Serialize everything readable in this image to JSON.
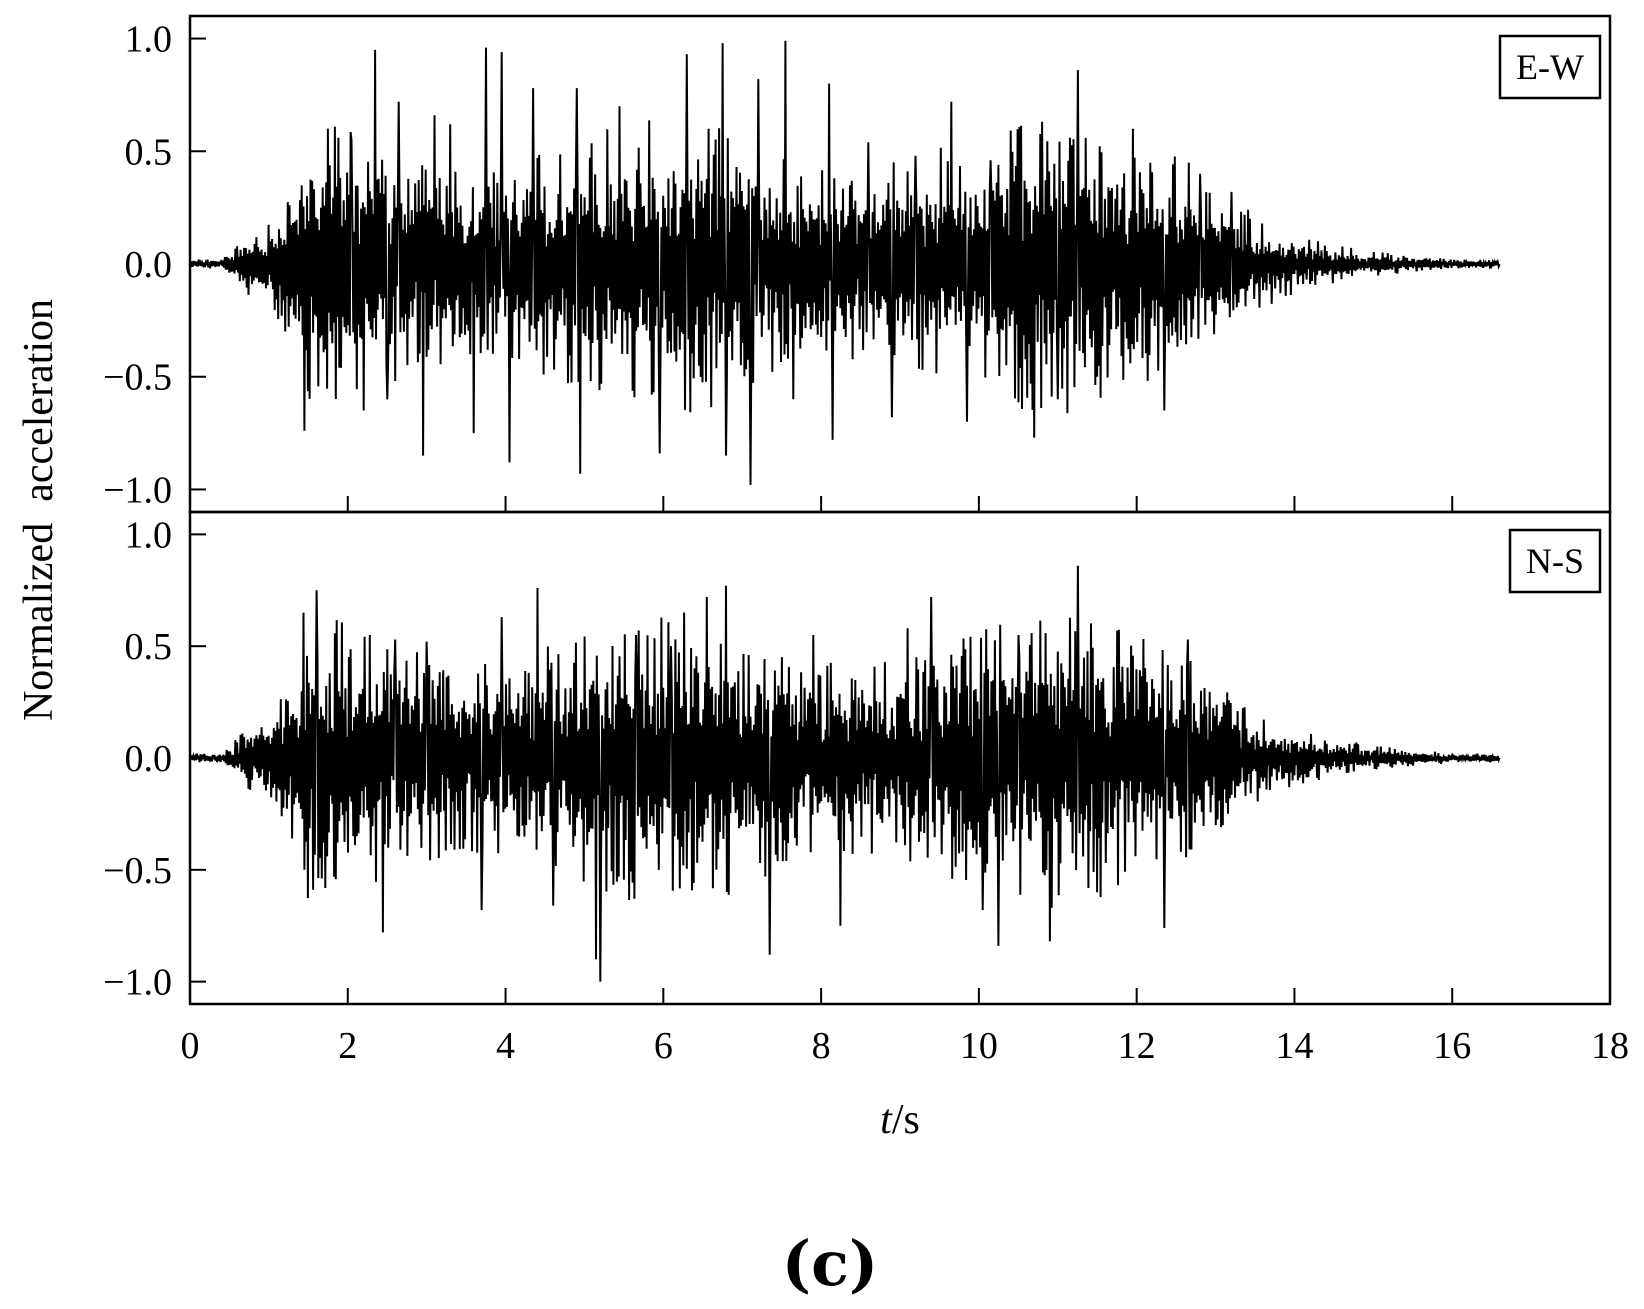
{
  "chart_data": [
    {
      "type": "line",
      "panel": "top",
      "legend": "E-W",
      "legend_placement": "top-right",
      "color": "#000000",
      "xlim": [
        0,
        18
      ],
      "ylim": [
        -1.1,
        1.1
      ],
      "x_ticks": [
        0,
        2,
        4,
        6,
        8,
        10,
        12,
        14,
        16,
        18
      ],
      "y_ticks": [
        -1.0,
        -0.5,
        0.0,
        0.5,
        1.0
      ],
      "y_tick_labels": [
        "−1.0",
        "−0.5",
        "0.0",
        "0.5",
        "1.0"
      ],
      "grid": false,
      "duration_s": 16.6,
      "peaks": [
        {
          "t": 1.45,
          "a": -0.74
        },
        {
          "t": 1.75,
          "a": 0.6
        },
        {
          "t": 2.05,
          "a": 0.55
        },
        {
          "t": 2.2,
          "a": -0.65
        },
        {
          "t": 2.35,
          "a": 0.95
        },
        {
          "t": 2.5,
          "a": -0.6
        },
        {
          "t": 2.65,
          "a": 0.72
        },
        {
          "t": 2.95,
          "a": -0.85
        },
        {
          "t": 3.1,
          "a": 0.66
        },
        {
          "t": 3.3,
          "a": 0.62
        },
        {
          "t": 3.6,
          "a": -0.75
        },
        {
          "t": 3.75,
          "a": 0.96
        },
        {
          "t": 3.95,
          "a": 0.94
        },
        {
          "t": 4.05,
          "a": -0.88
        },
        {
          "t": 4.35,
          "a": 0.78
        },
        {
          "t": 4.95,
          "a": -0.93
        },
        {
          "t": 4.9,
          "a": 0.78
        },
        {
          "t": 5.45,
          "a": 0.7
        },
        {
          "t": 5.95,
          "a": -0.84
        },
        {
          "t": 6.3,
          "a": 0.93
        },
        {
          "t": 6.75,
          "a": 0.98
        },
        {
          "t": 6.8,
          "a": -0.85
        },
        {
          "t": 7.1,
          "a": -0.98
        },
        {
          "t": 7.2,
          "a": 0.82
        },
        {
          "t": 7.55,
          "a": 0.99
        },
        {
          "t": 7.65,
          "a": -0.6
        },
        {
          "t": 8.1,
          "a": 0.8
        },
        {
          "t": 8.15,
          "a": -0.78
        },
        {
          "t": 8.6,
          "a": 0.54
        },
        {
          "t": 8.9,
          "a": -0.68
        },
        {
          "t": 9.2,
          "a": 0.48
        },
        {
          "t": 9.65,
          "a": 0.72
        },
        {
          "t": 9.85,
          "a": -0.7
        },
        {
          "t": 10.15,
          "a": 0.46
        },
        {
          "t": 10.7,
          "a": -0.77
        },
        {
          "t": 11.0,
          "a": -0.6
        },
        {
          "t": 11.15,
          "a": 0.56
        },
        {
          "t": 11.25,
          "a": 0.86
        },
        {
          "t": 11.5,
          "a": -0.5
        },
        {
          "t": 11.95,
          "a": 0.6
        },
        {
          "t": 12.35,
          "a": -0.65
        },
        {
          "t": 12.8,
          "a": 0.4
        },
        {
          "t": 13.2,
          "a": 0.32
        }
      ]
    },
    {
      "type": "line",
      "panel": "bottom",
      "legend": "N-S",
      "legend_placement": "top-right",
      "color": "#000000",
      "xlim": [
        0,
        18
      ],
      "ylim": [
        -1.1,
        1.1
      ],
      "x_ticks": [
        0,
        2,
        4,
        6,
        8,
        10,
        12,
        14,
        16,
        18
      ],
      "y_ticks": [
        -1.0,
        -0.5,
        0.0,
        0.5,
        1.0
      ],
      "y_tick_labels": [
        "−1.0",
        "−0.5",
        "0.0",
        "0.5",
        "1.0"
      ],
      "grid": false,
      "duration_s": 16.6,
      "peaks": [
        {
          "t": 1.3,
          "a": -0.36
        },
        {
          "t": 1.6,
          "a": 0.75
        },
        {
          "t": 2.45,
          "a": -0.78
        },
        {
          "t": 2.6,
          "a": 0.53
        },
        {
          "t": 3.0,
          "a": 0.52
        },
        {
          "t": 3.7,
          "a": -0.68
        },
        {
          "t": 3.95,
          "a": 0.63
        },
        {
          "t": 4.4,
          "a": 0.76
        },
        {
          "t": 4.6,
          "a": -0.66
        },
        {
          "t": 5.2,
          "a": -1.0
        },
        {
          "t": 5.15,
          "a": -0.9
        },
        {
          "t": 5.65,
          "a": 0.55
        },
        {
          "t": 6.1,
          "a": 0.5
        },
        {
          "t": 6.55,
          "a": 0.72
        },
        {
          "t": 6.8,
          "a": 0.77
        },
        {
          "t": 7.35,
          "a": -0.88
        },
        {
          "t": 7.9,
          "a": 0.55
        },
        {
          "t": 8.25,
          "a": -0.75
        },
        {
          "t": 9.1,
          "a": 0.58
        },
        {
          "t": 9.4,
          "a": 0.72
        },
        {
          "t": 10.05,
          "a": -0.68
        },
        {
          "t": 10.25,
          "a": -0.84
        },
        {
          "t": 10.5,
          "a": 0.55
        },
        {
          "t": 10.9,
          "a": -0.82
        },
        {
          "t": 11.25,
          "a": 0.86
        },
        {
          "t": 11.5,
          "a": -0.6
        },
        {
          "t": 11.75,
          "a": 0.57
        },
        {
          "t": 12.35,
          "a": -0.76
        },
        {
          "t": 12.65,
          "a": 0.53
        },
        {
          "t": 13.0,
          "a": -0.3
        }
      ]
    }
  ],
  "xlabel_italic": "t",
  "xlabel_unit": "/s",
  "ylabel": "Normalized  acceleration",
  "x_tick_labels": [
    "0",
    "2",
    "4",
    "6",
    "8",
    "10",
    "12",
    "14",
    "16",
    "18"
  ],
  "caption": "(c)"
}
